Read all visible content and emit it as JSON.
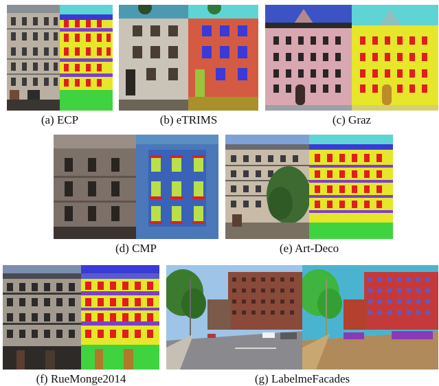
{
  "figure": {
    "panels": [
      {
        "id": "a",
        "caption": "(a)  ECP"
      },
      {
        "id": "b",
        "caption": "(b)  eTRIMS"
      },
      {
        "id": "c",
        "caption": "(c)  Graz"
      },
      {
        "id": "d",
        "caption": "(d)  CMP"
      },
      {
        "id": "e",
        "caption": "(e)  Art-Deco"
      },
      {
        "id": "f",
        "caption": "(f)  RueMonge2014"
      },
      {
        "id": "g",
        "caption": "(g)  LabelmeFacades"
      }
    ],
    "label_colors": {
      "wall": "#e6e62a",
      "window": "#e01e1e",
      "balcony": "#7b3fd1",
      "roof": "#3a3ad6",
      "shop": "#3fd43f",
      "sky": "#5fd4d4",
      "door": "#c08a2a",
      "background": "#2a6fb0"
    }
  }
}
